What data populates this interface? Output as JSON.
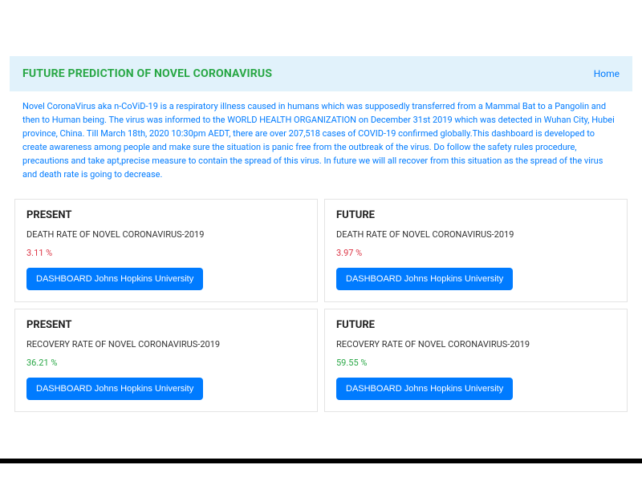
{
  "header": {
    "title": "FUTURE PREDICTION OF NOVEL CORONAVIRUS",
    "home_label": "Home"
  },
  "intro": {
    "text": "Novel CoronaVirus aka n-CoViD-19 is a respiratory illness caused in humans which was supposedly transferred from a Mammal Bat to a Pangolin and then to Human being. The virus was informed to the WORLD HEALTH ORGANIZATION on December 31st 2019 which was detected in Wuhan City, Hubei province, China. Till March 18th, 2020 10:30pm AEDT, there are over 207,518 cases of COVID-19 confirmed globally.This dashboard is developed to create awareness among people and make sure the situation is panic free from the outbreak of the virus. Do follow the safety rules procedure, precautions and take apt,precise measure to contain the spread of this virus. In future we will all recover from this situation as the spread of the virus and death rate is going to decrease."
  },
  "button_label": "DASHBOARD Johns Hopkins University",
  "cards": [
    {
      "period": "PRESENT",
      "metric": "DEATH RATE OF NOVEL CORONAVIRUS-2019",
      "value": "3.11 %",
      "value_color": "red"
    },
    {
      "period": "FUTURE",
      "metric": "DEATH RATE OF NOVEL CORONAVIRUS-2019",
      "value": "3.97 %",
      "value_color": "red"
    },
    {
      "period": "PRESENT",
      "metric": "RECOVERY RATE OF NOVEL CORONAVIRUS-2019",
      "value": "36.21 %",
      "value_color": "green"
    },
    {
      "period": "FUTURE",
      "metric": "RECOVERY RATE OF NOVEL CORONAVIRUS-2019",
      "value": "59.55 %",
      "value_color": "green"
    }
  ],
  "colors": {
    "header_bg": "#e1f2fb",
    "title_color": "#28a745",
    "link_color": "#007bff",
    "intro_text_color": "#007bff",
    "button_bg": "#007bff",
    "button_text": "#ffffff",
    "card_border": "#e4e4e4",
    "value_red": "#dc3545",
    "value_green": "#28a745",
    "bottom_bar": "#000000"
  }
}
